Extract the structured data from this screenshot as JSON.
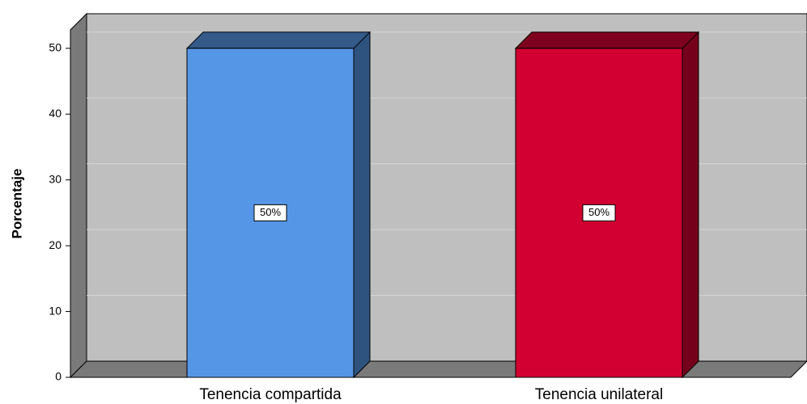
{
  "chart_data": {
    "type": "bar3d",
    "ylabel": "Porcentaje",
    "categories": [
      "Tenencia compartida",
      "Tenencia unilateral"
    ],
    "values": [
      50,
      50
    ],
    "value_labels": [
      "50%",
      "50%"
    ],
    "colors": [
      "#5696e6",
      "#d20032"
    ],
    "ylim": [
      0,
      52.8
    ],
    "yticks": [
      0,
      10,
      20,
      30,
      40,
      50
    ],
    "grid": true
  }
}
